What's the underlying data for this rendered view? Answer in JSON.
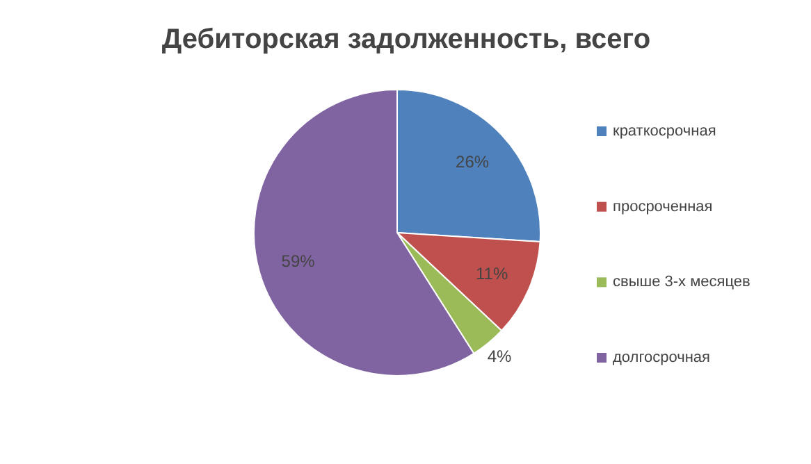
{
  "chart_data": {
    "type": "pie",
    "title": "Дебиторская задолженность, всего",
    "categories": [
      "краткосрочная",
      "просроченная",
      "свыше 3-х месяцев",
      "долгосрочная"
    ],
    "values": [
      26,
      11,
      4,
      59
    ],
    "colors": [
      "#4f81bd",
      "#c0504d",
      "#9bbb59",
      "#8064a2"
    ],
    "value_labels": [
      "26%",
      "11%",
      "4%",
      "59%"
    ],
    "legend": "right"
  }
}
